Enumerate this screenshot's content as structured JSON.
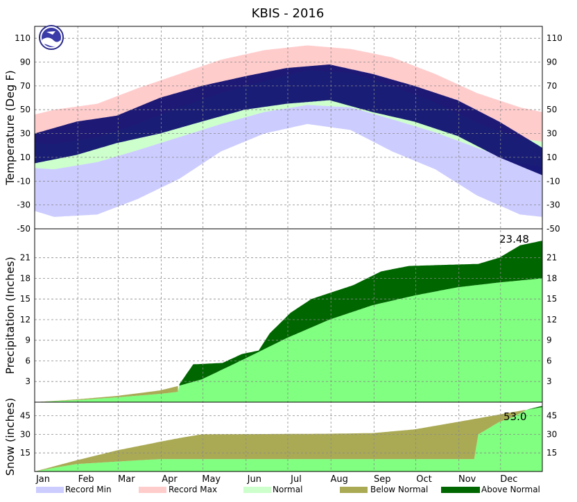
{
  "chart_data": {
    "title": "KBIS - 2016",
    "months": [
      "Jan",
      "Feb",
      "Mar",
      "Apr",
      "May",
      "Jun",
      "Jul",
      "Aug",
      "Sep",
      "Oct",
      "Nov",
      "Dec"
    ],
    "legend": [
      {
        "label": "Record Min",
        "color": "#ccccff"
      },
      {
        "label": "Record Max",
        "color": "#ffcccc"
      },
      {
        "label": "Normal",
        "color": "#ccffcc"
      },
      {
        "label": "Below Normal",
        "color": "#aaaa55"
      },
      {
        "label": "Above Normal",
        "color": "#006600"
      }
    ],
    "temperature": {
      "type": "area",
      "ylabel": "Temperature (Deg F)",
      "ylim": [
        -50,
        120
      ],
      "ticks": [
        110,
        90,
        70,
        50,
        30,
        10,
        -10,
        -30,
        -50
      ],
      "grid": true,
      "record_max_f": [
        [
          1,
          46
        ],
        [
          15,
          50
        ],
        [
          46,
          55
        ],
        [
          75,
          68
        ],
        [
          105,
          80
        ],
        [
          135,
          92
        ],
        [
          166,
          100
        ],
        [
          197,
          104
        ],
        [
          228,
          101
        ],
        [
          258,
          94
        ],
        [
          289,
          80
        ],
        [
          319,
          64
        ],
        [
          350,
          52
        ],
        [
          366,
          48
        ]
      ],
      "normal_high_f": [
        [
          1,
          22
        ],
        [
          15,
          21
        ],
        [
          46,
          27
        ],
        [
          75,
          38
        ],
        [
          105,
          52
        ],
        [
          135,
          64
        ],
        [
          166,
          74
        ],
        [
          197,
          83
        ],
        [
          228,
          81
        ],
        [
          258,
          70
        ],
        [
          289,
          56
        ],
        [
          319,
          39
        ],
        [
          350,
          26
        ],
        [
          366,
          23
        ]
      ],
      "normal_low_f": [
        [
          1,
          1
        ],
        [
          15,
          0
        ],
        [
          46,
          6
        ],
        [
          75,
          16
        ],
        [
          105,
          27
        ],
        [
          135,
          38
        ],
        [
          166,
          48
        ],
        [
          197,
          54
        ],
        [
          228,
          52
        ],
        [
          258,
          42
        ],
        [
          289,
          31
        ],
        [
          319,
          18
        ],
        [
          350,
          5
        ],
        [
          366,
          2
        ]
      ],
      "record_min_f": [
        [
          1,
          -35
        ],
        [
          15,
          -40
        ],
        [
          46,
          -38
        ],
        [
          75,
          -25
        ],
        [
          105,
          -8
        ],
        [
          135,
          15
        ],
        [
          166,
          30
        ],
        [
          197,
          38
        ],
        [
          228,
          33
        ],
        [
          258,
          15
        ],
        [
          289,
          0
        ],
        [
          319,
          -22
        ],
        [
          350,
          -38
        ],
        [
          366,
          -40
        ]
      ],
      "observed_high_f": [
        [
          1,
          30
        ],
        [
          31,
          40
        ],
        [
          60,
          45
        ],
        [
          91,
          60
        ],
        [
          121,
          70
        ],
        [
          152,
          78
        ],
        [
          182,
          85
        ],
        [
          213,
          88
        ],
        [
          244,
          80
        ],
        [
          274,
          70
        ],
        [
          305,
          58
        ],
        [
          335,
          40
        ],
        [
          366,
          18
        ]
      ],
      "observed_low_f": [
        [
          1,
          5
        ],
        [
          31,
          12
        ],
        [
          60,
          22
        ],
        [
          91,
          30
        ],
        [
          121,
          40
        ],
        [
          152,
          50
        ],
        [
          182,
          55
        ],
        [
          213,
          58
        ],
        [
          244,
          48
        ],
        [
          274,
          40
        ],
        [
          305,
          28
        ],
        [
          335,
          10
        ],
        [
          366,
          -5
        ]
      ]
    },
    "precipitation": {
      "type": "area",
      "ylabel": "Precipitation (Inches)",
      "ylim": [
        0,
        25.2
      ],
      "ticks": [
        21,
        18,
        15,
        12,
        9,
        6,
        3
      ],
      "grid": true,
      "total_label": "23.48",
      "normal_in": [
        [
          1,
          0
        ],
        [
          31,
          0.4
        ],
        [
          60,
          0.9
        ],
        [
          91,
          1.7
        ],
        [
          105,
          2.4
        ],
        [
          121,
          3.3
        ],
        [
          152,
          6.3
        ],
        [
          182,
          9.3
        ],
        [
          213,
          12.0
        ],
        [
          244,
          14.1
        ],
        [
          274,
          15.5
        ],
        [
          305,
          16.7
        ],
        [
          335,
          17.4
        ],
        [
          366,
          18.0
        ]
      ],
      "observed_in": [
        [
          1,
          0
        ],
        [
          31,
          0.3
        ],
        [
          60,
          0.7
        ],
        [
          91,
          1.2
        ],
        [
          104,
          1.5
        ],
        [
          105,
          2.6
        ],
        [
          115,
          5.5
        ],
        [
          136,
          5.7
        ],
        [
          150,
          7.0
        ],
        [
          162,
          7.5
        ],
        [
          170,
          10.0
        ],
        [
          185,
          13.0
        ],
        [
          200,
          15.0
        ],
        [
          230,
          17.0
        ],
        [
          250,
          19.0
        ],
        [
          270,
          19.8
        ],
        [
          320,
          20.1
        ],
        [
          335,
          21.0
        ],
        [
          350,
          22.8
        ],
        [
          366,
          23.48
        ]
      ]
    },
    "snow": {
      "type": "area",
      "ylabel": "Snow (inches)",
      "ylim": [
        0,
        56
      ],
      "ticks": [
        45,
        30,
        15
      ],
      "grid": true,
      "total_label": "53.0",
      "normal_in": [
        [
          1,
          0
        ],
        [
          31,
          9
        ],
        [
          60,
          17
        ],
        [
          91,
          24
        ],
        [
          105,
          27
        ],
        [
          121,
          30
        ],
        [
          213,
          30.5
        ],
        [
          244,
          31
        ],
        [
          274,
          34
        ],
        [
          305,
          40
        ],
        [
          335,
          46
        ],
        [
          350,
          49
        ],
        [
          366,
          52
        ]
      ],
      "observed_in": [
        [
          1,
          0
        ],
        [
          15,
          3
        ],
        [
          31,
          6
        ],
        [
          60,
          8
        ],
        [
          75,
          9
        ],
        [
          91,
          10
        ],
        [
          121,
          10
        ],
        [
          305,
          10
        ],
        [
          317,
          10
        ],
        [
          320,
          30
        ],
        [
          335,
          40
        ],
        [
          345,
          44
        ],
        [
          355,
          50
        ],
        [
          366,
          53
        ]
      ]
    }
  }
}
